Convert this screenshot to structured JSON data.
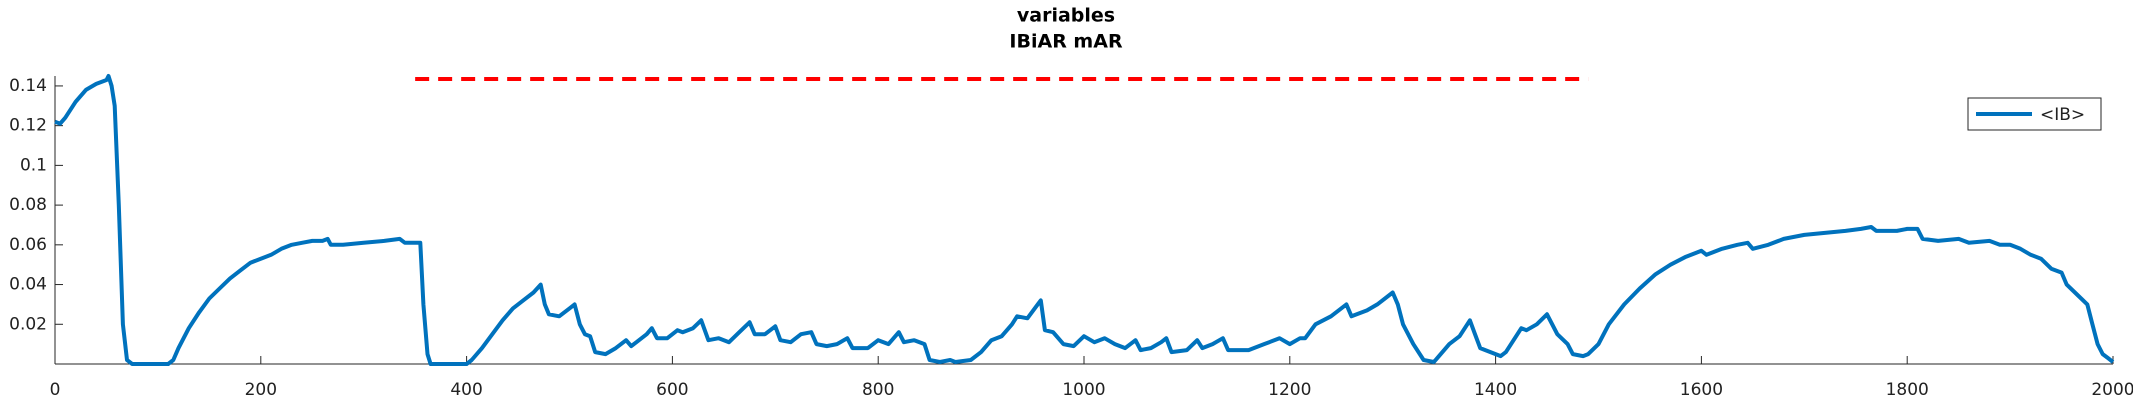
{
  "chart_data": {
    "type": "line",
    "title": "variables",
    "subtitle": "IBiAR mAR",
    "x": [
      0,
      5,
      10,
      20,
      30,
      40,
      50,
      52,
      55,
      58,
      62,
      66,
      70,
      75,
      110,
      115,
      120,
      130,
      140,
      150,
      160,
      170,
      180,
      190,
      200,
      210,
      220,
      230,
      240,
      250,
      260,
      265,
      268,
      280,
      300,
      320,
      335,
      340,
      355,
      358,
      362,
      365,
      400,
      405,
      415,
      425,
      435,
      445,
      455,
      465,
      472,
      476,
      480,
      490,
      500,
      505,
      510,
      515,
      520,
      525,
      535,
      545,
      555,
      560,
      565,
      575,
      580,
      585,
      595,
      605,
      610,
      620,
      628,
      635,
      645,
      655,
      665,
      675,
      680,
      690,
      700,
      705,
      715,
      725,
      735,
      740,
      750,
      760,
      770,
      775,
      790,
      800,
      810,
      820,
      825,
      835,
      845,
      850,
      860,
      870,
      875,
      890,
      900,
      910,
      920,
      930,
      935,
      945,
      955,
      958,
      962,
      970,
      980,
      990,
      1000,
      1010,
      1020,
      1030,
      1040,
      1050,
      1055,
      1065,
      1075,
      1080,
      1085,
      1100,
      1110,
      1115,
      1125,
      1135,
      1140,
      1160,
      1175,
      1180,
      1190,
      1200,
      1210,
      1215,
      1225,
      1240,
      1255,
      1260,
      1275,
      1285,
      1300,
      1305,
      1310,
      1320,
      1330,
      1340,
      1345,
      1355,
      1365,
      1375,
      1380,
      1385,
      1390,
      1400,
      1405,
      1410,
      1425,
      1430,
      1440,
      1450,
      1455,
      1460,
      1470,
      1475,
      1485,
      1490,
      1500,
      1510,
      1525,
      1540,
      1555,
      1570,
      1585,
      1600,
      1605,
      1620,
      1635,
      1645,
      1650,
      1665,
      1680,
      1700,
      1720,
      1740,
      1755,
      1765,
      1770,
      1790,
      1800,
      1810,
      1815,
      1830,
      1850,
      1860,
      1880,
      1890,
      1900,
      1910,
      1920,
      1930,
      1940,
      1950,
      1955,
      1965,
      1975,
      1980,
      1985,
      1990,
      1995,
      2000
    ],
    "series": [
      {
        "name": "<IB>",
        "color": "#0072bd",
        "values": [
          0.122,
          0.121,
          0.124,
          0.132,
          0.138,
          0.141,
          0.143,
          0.145,
          0.14,
          0.13,
          0.08,
          0.02,
          0.002,
          0,
          0,
          0.002,
          0.008,
          0.018,
          0.026,
          0.033,
          0.038,
          0.043,
          0.047,
          0.051,
          0.053,
          0.055,
          0.058,
          0.06,
          0.061,
          0.062,
          0.062,
          0.063,
          0.06,
          0.06,
          0.061,
          0.062,
          0.063,
          0.061,
          0.061,
          0.03,
          0.005,
          0,
          0,
          0.002,
          0.008,
          0.015,
          0.022,
          0.028,
          0.032,
          0.036,
          0.04,
          0.03,
          0.025,
          0.024,
          0.028,
          0.03,
          0.02,
          0.015,
          0.014,
          0.006,
          0.005,
          0.008,
          0.012,
          0.009,
          0.011,
          0.015,
          0.018,
          0.013,
          0.013,
          0.017,
          0.016,
          0.018,
          0.022,
          0.012,
          0.013,
          0.011,
          0.016,
          0.021,
          0.015,
          0.015,
          0.019,
          0.012,
          0.011,
          0.015,
          0.016,
          0.01,
          0.009,
          0.01,
          0.013,
          0.008,
          0.008,
          0.012,
          0.01,
          0.016,
          0.011,
          0.012,
          0.01,
          0.002,
          0.001,
          0.002,
          0.001,
          0.002,
          0.006,
          0.012,
          0.014,
          0.02,
          0.024,
          0.023,
          0.03,
          0.032,
          0.017,
          0.016,
          0.01,
          0.009,
          0.014,
          0.011,
          0.013,
          0.01,
          0.008,
          0.012,
          0.007,
          0.008,
          0.011,
          0.013,
          0.006,
          0.007,
          0.012,
          0.008,
          0.01,
          0.013,
          0.007,
          0.007,
          0.01,
          0.011,
          0.013,
          0.01,
          0.013,
          0.013,
          0.02,
          0.024,
          0.03,
          0.024,
          0.027,
          0.03,
          0.036,
          0.03,
          0.02,
          0.01,
          0.002,
          0.001,
          0.004,
          0.01,
          0.014,
          0.022,
          0.015,
          0.008,
          0.007,
          0.005,
          0.004,
          0.006,
          0.018,
          0.017,
          0.02,
          0.025,
          0.02,
          0.015,
          0.01,
          0.005,
          0.004,
          0.005,
          0.01,
          0.02,
          0.03,
          0.038,
          0.045,
          0.05,
          0.054,
          0.057,
          0.055,
          0.058,
          0.06,
          0.061,
          0.058,
          0.06,
          0.063,
          0.065,
          0.066,
          0.067,
          0.068,
          0.069,
          0.067,
          0.067,
          0.068,
          0.068,
          0.063,
          0.062,
          0.063,
          0.061,
          0.062,
          0.06,
          0.06,
          0.058,
          0.055,
          0.053,
          0.048,
          0.046,
          0.04,
          0.035,
          0.03,
          0.02,
          0.01,
          0.005,
          0.003,
          0.001
        ]
      }
    ],
    "reference_line": {
      "y": 0.1435,
      "x": [
        350,
        1490
      ],
      "color": "#ff0000"
    },
    "xlim": [
      0,
      2000
    ],
    "xticks": [
      0,
      200,
      400,
      600,
      800,
      1000,
      1200,
      1400,
      1600,
      1800,
      2000
    ],
    "ylim": [
      0,
      0.145
    ],
    "yticks": [
      0.02,
      0.04,
      0.06,
      0.08,
      0.1,
      0.12,
      0.14
    ],
    "legend": "upper right"
  }
}
